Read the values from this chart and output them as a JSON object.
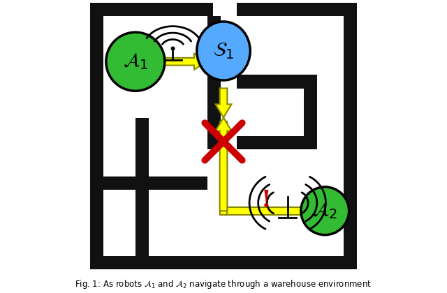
{
  "bg_color": "#ffffff",
  "wall_color": "#111111",
  "agent1_color": "#33bb33",
  "agent2_color": "#33bb33",
  "server_color": "#55aaff",
  "arrow_color": "#ffff00",
  "arrow_edge_color": "#888800",
  "cross_color": "#cc0000",
  "exclaim_color": "#cc0000",
  "caption": "Fig. 1: As robots $\\mathcal{A}_1$ and $\\mathcal{A}_2$ navigate through a warehouse environment",
  "fig_width": 6.4,
  "fig_height": 4.2
}
